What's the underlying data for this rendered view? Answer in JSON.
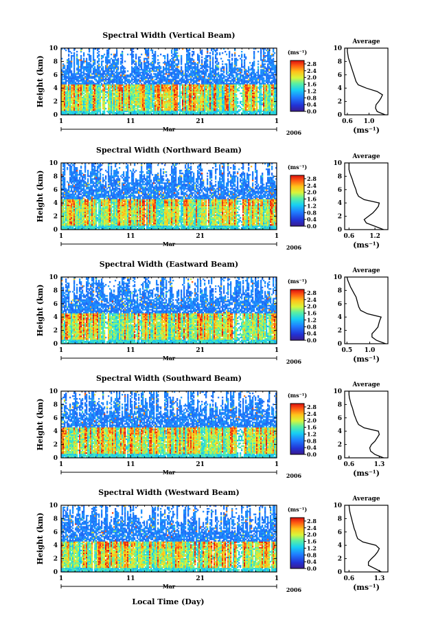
{
  "figure": {
    "xlabel": "Local Time (Day)",
    "month_label": "Mar",
    "year_label": "2006",
    "ylabel": "Height (km)",
    "colorbar_unit": "(ms⁻¹)",
    "profile_title": "Average",
    "profile_xlabel": "(ms⁻¹)"
  },
  "chart_data": [
    {
      "type": "heatmap",
      "title": "Spectral Width (Vertical Beam)",
      "x_ticks": [
        "1",
        "11",
        "21",
        "1"
      ],
      "y_ticks": [
        "0",
        "2",
        "4",
        "6",
        "8",
        "10"
      ],
      "ylim": [
        0,
        10
      ],
      "colorbar_ticks": [
        "0.0",
        "0.4",
        "0.8",
        "1.2",
        "1.6",
        "2.0",
        "2.4",
        "2.8"
      ],
      "colorbar_range": [
        0,
        3.0
      ],
      "profile": {
        "title": "Average",
        "x_ticks": [
          "0.6",
          "1.0"
        ],
        "xlim": [
          0.55,
          1.35
        ],
        "heights": [
          0,
          0.5,
          1,
          1.5,
          2,
          2.5,
          3,
          3.5,
          4,
          4.5,
          5,
          5.5,
          6,
          6.5,
          7,
          7.5,
          8,
          8.5,
          9,
          9.5,
          10
        ],
        "values": [
          1.3,
          1.15,
          1.12,
          1.13,
          1.18,
          1.22,
          1.25,
          1.15,
          0.95,
          0.8,
          0.76,
          0.74,
          0.72,
          0.7,
          0.68,
          0.66,
          0.64,
          0.62,
          0.61,
          0.6,
          0.6
        ]
      }
    },
    {
      "type": "heatmap",
      "title": "Spectral Width (Northward Beam)",
      "x_ticks": [
        "1",
        "11",
        "21",
        "1"
      ],
      "y_ticks": [
        "0",
        "2",
        "4",
        "6",
        "8",
        "10"
      ],
      "ylim": [
        0,
        10
      ],
      "colorbar_ticks": [
        "0.0",
        "0.4",
        "0.8",
        "1.2",
        "1.6",
        "2.0",
        "2.4",
        "2.8"
      ],
      "colorbar_range": [
        0,
        3.0
      ],
      "profile": {
        "title": "Average",
        "x_ticks": [
          "0.6",
          "1.2"
        ],
        "xlim": [
          0.5,
          1.5
        ],
        "heights": [
          0,
          0.5,
          1,
          1.5,
          2,
          2.5,
          3,
          3.5,
          4,
          4.5,
          5,
          5.5,
          6,
          6.5,
          7,
          7.5,
          8,
          8.5,
          9,
          9.5,
          10
        ],
        "values": [
          1.4,
          1.2,
          1.0,
          0.95,
          1.05,
          1.15,
          1.22,
          1.28,
          1.3,
          0.95,
          0.82,
          0.78,
          0.76,
          0.73,
          0.7,
          0.68,
          0.65,
          0.62,
          0.6,
          0.6,
          0.6
        ]
      }
    },
    {
      "type": "heatmap",
      "title": "Spectral Width (Eastward Beam)",
      "x_ticks": [
        "1",
        "11",
        "21",
        "1"
      ],
      "y_ticks": [
        "0",
        "2",
        "4",
        "6",
        "8",
        "10"
      ],
      "ylim": [
        0,
        10
      ],
      "colorbar_ticks": [
        "0.0",
        "0.4",
        "0.8",
        "1.2",
        "1.6",
        "2.0",
        "2.4",
        "2.8"
      ],
      "colorbar_range": [
        0,
        3.0
      ],
      "profile": {
        "title": "Average",
        "x_ticks": [
          "0.5",
          "1.0"
        ],
        "xlim": [
          0.45,
          1.4
        ],
        "heights": [
          0,
          0.5,
          1,
          1.5,
          2,
          2.5,
          3,
          3.5,
          4,
          4.5,
          5,
          5.5,
          6,
          6.5,
          7,
          7.5,
          8,
          8.5,
          9,
          9.5,
          10
        ],
        "values": [
          1.35,
          1.15,
          1.05,
          1.05,
          1.12,
          1.18,
          1.2,
          1.22,
          1.25,
          0.95,
          0.8,
          0.76,
          0.74,
          0.72,
          0.7,
          0.66,
          0.62,
          0.58,
          0.55,
          0.52,
          0.5
        ]
      }
    },
    {
      "type": "heatmap",
      "title": "Spectral Width (Southward Beam)",
      "x_ticks": [
        "1",
        "11",
        "21",
        "1"
      ],
      "y_ticks": [
        "0",
        "2",
        "4",
        "6",
        "8",
        "10"
      ],
      "ylim": [
        0,
        10
      ],
      "colorbar_ticks": [
        "0.0",
        "0.4",
        "0.8",
        "1.2",
        "1.6",
        "2.0",
        "2.4",
        "2.8"
      ],
      "colorbar_range": [
        0,
        3.0
      ],
      "profile": {
        "title": "Average",
        "x_ticks": [
          "0.6",
          "1.3"
        ],
        "xlim": [
          0.5,
          1.5
        ],
        "heights": [
          0,
          0.5,
          1,
          1.5,
          2,
          2.5,
          3,
          3.5,
          4,
          4.5,
          5,
          5.5,
          6,
          6.5,
          7,
          7.5,
          8,
          8.5,
          9,
          9.5,
          10
        ],
        "values": [
          1.4,
          1.2,
          1.1,
          1.08,
          1.12,
          1.2,
          1.25,
          1.3,
          1.28,
          0.95,
          0.82,
          0.78,
          0.75,
          0.72,
          0.7,
          0.68,
          0.65,
          0.63,
          0.61,
          0.6,
          0.6
        ]
      }
    },
    {
      "type": "heatmap",
      "title": "Spectral Width (Westward Beam)",
      "x_ticks": [
        "1",
        "11",
        "21",
        "1"
      ],
      "y_ticks": [
        "0",
        "2",
        "4",
        "6",
        "8",
        "10"
      ],
      "ylim": [
        0,
        10
      ],
      "colorbar_ticks": [
        "0.0",
        "0.4",
        "0.8",
        "1.2",
        "1.6",
        "2.0",
        "2.4",
        "2.8"
      ],
      "colorbar_range": [
        0,
        3.0
      ],
      "profile": {
        "title": "Average",
        "x_ticks": [
          "0.6",
          "1.3"
        ],
        "xlim": [
          0.5,
          1.5
        ],
        "heights": [
          0,
          0.5,
          1,
          1.5,
          2,
          2.5,
          3,
          3.5,
          4,
          4.5,
          5,
          5.5,
          6,
          6.5,
          7,
          7.5,
          8,
          8.5,
          9,
          9.5,
          10
        ],
        "values": [
          1.35,
          1.2,
          1.05,
          1.05,
          1.12,
          1.2,
          1.26,
          1.3,
          1.22,
          0.92,
          0.8,
          0.77,
          0.75,
          0.72,
          0.7,
          0.68,
          0.66,
          0.64,
          0.62,
          0.61,
          0.6
        ]
      }
    }
  ]
}
